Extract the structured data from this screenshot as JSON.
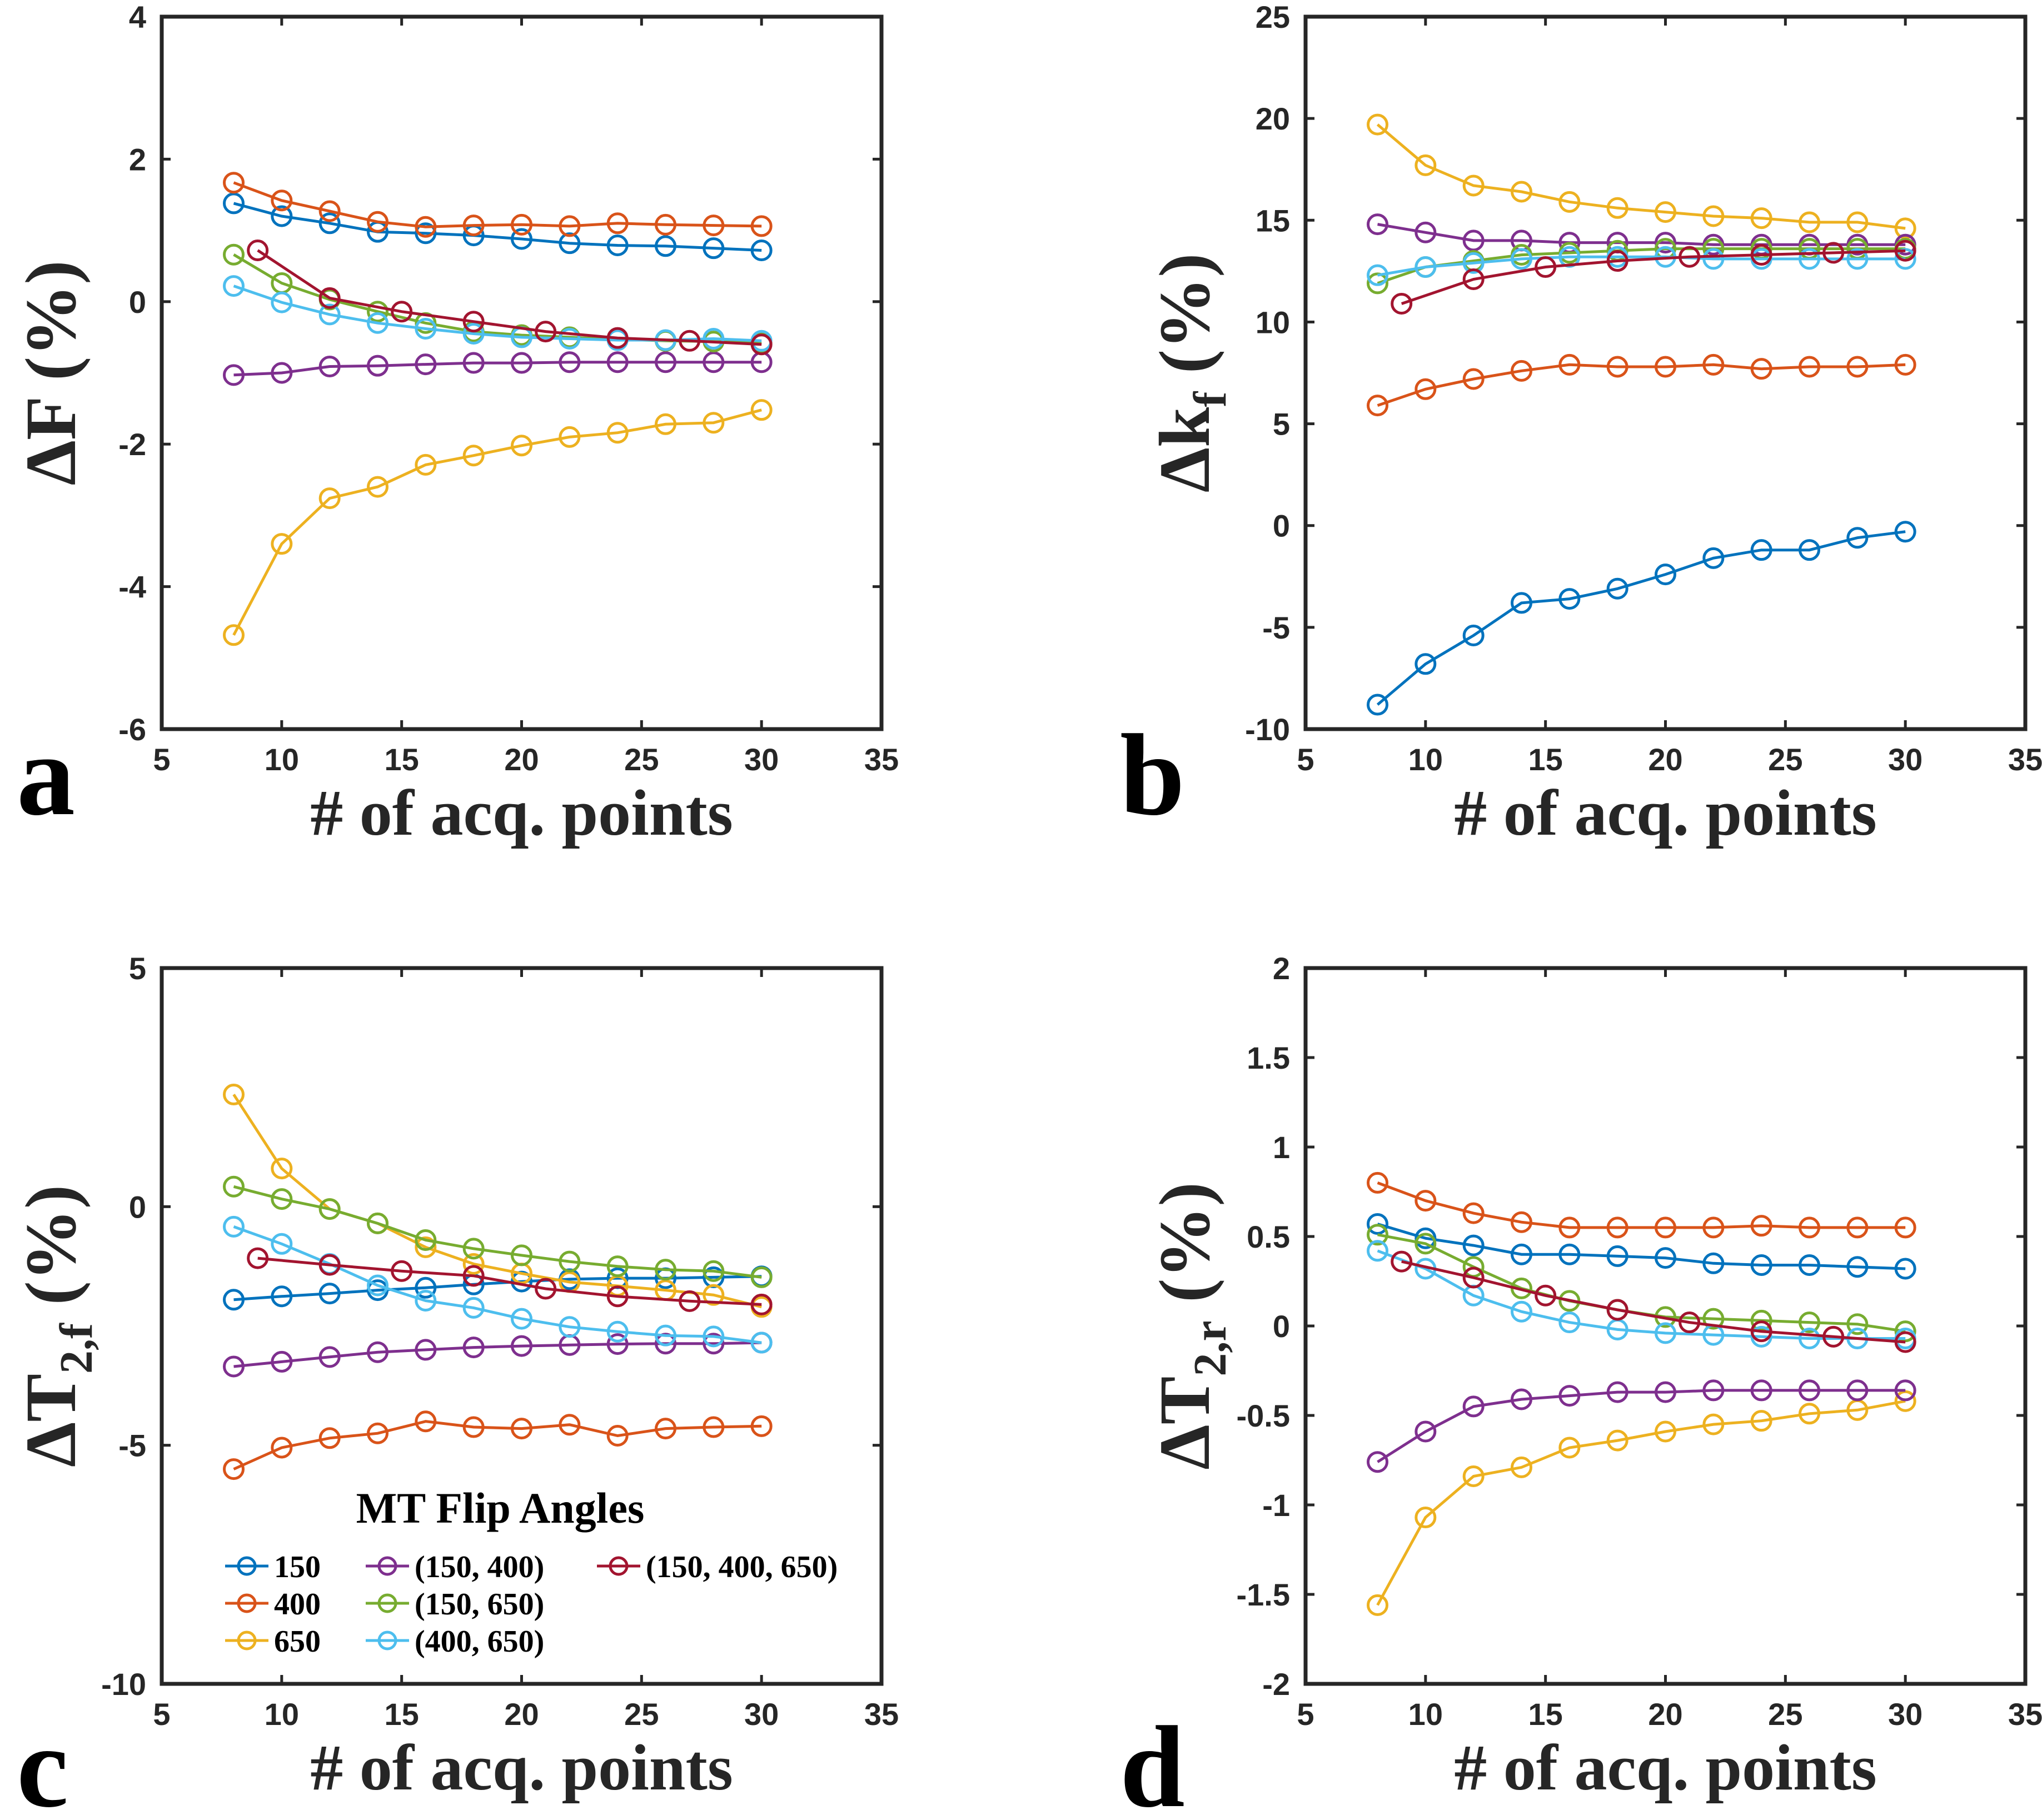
{
  "colors": {
    "150": "#0072BD",
    "400": "#D95319",
    "650": "#EDB120",
    "(150, 400)": "#7E2F8E",
    "(150, 650)": "#77AC30",
    "(400, 650)": "#4DBEEE",
    "(150, 400, 650)": "#A2142F",
    "axis": "#262626"
  },
  "legend": {
    "title": "MT Flip Angles",
    "entries": [
      "150",
      "400",
      "650",
      "(150, 400)",
      "(150, 650)",
      "(400, 650)",
      "(150, 400, 650)"
    ]
  },
  "chart_data": [
    {
      "panel": "a",
      "type": "line",
      "xlabel": "# of acq. points",
      "ylabel": "ΔF (%)",
      "xlim": [
        5,
        35
      ],
      "ylim": [
        -6,
        4
      ],
      "xticks": [
        5,
        10,
        15,
        20,
        25,
        30,
        35
      ],
      "yticks": [
        -6,
        -4,
        -2,
        0,
        2,
        4
      ],
      "series": [
        {
          "name": "150",
          "x": [
            8,
            10,
            12,
            14,
            16,
            18,
            20,
            22,
            24,
            26,
            28,
            30
          ],
          "y": [
            1.38,
            1.2,
            1.1,
            0.98,
            0.96,
            0.93,
            0.88,
            0.82,
            0.79,
            0.78,
            0.75,
            0.72
          ]
        },
        {
          "name": "400",
          "x": [
            8,
            10,
            12,
            14,
            16,
            18,
            20,
            22,
            24,
            26,
            28,
            30
          ],
          "y": [
            1.67,
            1.42,
            1.27,
            1.12,
            1.05,
            1.07,
            1.08,
            1.06,
            1.1,
            1.08,
            1.07,
            1.06
          ]
        },
        {
          "name": "650",
          "x": [
            8,
            10,
            12,
            14,
            16,
            18,
            20,
            22,
            24,
            26,
            28,
            30
          ],
          "y": [
            -4.68,
            -3.4,
            -2.76,
            -2.6,
            -2.29,
            -2.16,
            -2.02,
            -1.9,
            -1.84,
            -1.72,
            -1.7,
            -1.52
          ]
        },
        {
          "name": "(150, 400)",
          "x": [
            8,
            10,
            12,
            14,
            16,
            18,
            20,
            22,
            24,
            26,
            28,
            30
          ],
          "y": [
            -1.03,
            -1.0,
            -0.91,
            -0.9,
            -0.88,
            -0.86,
            -0.86,
            -0.85,
            -0.85,
            -0.85,
            -0.85,
            -0.85
          ]
        },
        {
          "name": "(150, 650)",
          "x": [
            8,
            10,
            12,
            14,
            16,
            18,
            20,
            22,
            24,
            26,
            28,
            30
          ],
          "y": [
            0.66,
            0.26,
            0.03,
            -0.14,
            -0.3,
            -0.42,
            -0.47,
            -0.5,
            -0.53,
            -0.55,
            -0.56,
            -0.58
          ]
        },
        {
          "name": "(400, 650)",
          "x": [
            8,
            10,
            12,
            14,
            16,
            18,
            20,
            22,
            24,
            26,
            28,
            30
          ],
          "y": [
            0.22,
            -0.01,
            -0.18,
            -0.3,
            -0.38,
            -0.45,
            -0.5,
            -0.52,
            -0.54,
            -0.54,
            -0.52,
            -0.55
          ]
        },
        {
          "name": "(150, 400, 650)",
          "x": [
            9,
            12,
            15,
            18,
            21,
            24,
            27,
            30
          ],
          "y": [
            0.72,
            0.05,
            -0.14,
            -0.28,
            -0.42,
            -0.51,
            -0.55,
            -0.6
          ]
        }
      ]
    },
    {
      "panel": "b",
      "type": "line",
      "xlabel": "# of acq. points",
      "ylabel": "Δk_f (%)",
      "xlim": [
        5,
        35
      ],
      "ylim": [
        -10,
        25
      ],
      "xticks": [
        5,
        10,
        15,
        20,
        25,
        30,
        35
      ],
      "yticks": [
        -10,
        -5,
        0,
        5,
        10,
        15,
        20,
        25
      ],
      "series": [
        {
          "name": "150",
          "x": [
            8,
            10,
            12,
            14,
            16,
            18,
            20,
            22,
            24,
            26,
            28,
            30
          ],
          "y": [
            -8.8,
            -6.8,
            -5.4,
            -3.8,
            -3.6,
            -3.1,
            -2.4,
            -1.6,
            -1.2,
            -1.2,
            -0.6,
            -0.3
          ]
        },
        {
          "name": "400",
          "x": [
            8,
            10,
            12,
            14,
            16,
            18,
            20,
            22,
            24,
            26,
            28,
            30
          ],
          "y": [
            5.9,
            6.7,
            7.2,
            7.6,
            7.9,
            7.8,
            7.8,
            7.9,
            7.7,
            7.8,
            7.8,
            7.9
          ]
        },
        {
          "name": "650",
          "x": [
            8,
            10,
            12,
            14,
            16,
            18,
            20,
            22,
            24,
            26,
            28,
            30
          ],
          "y": [
            19.7,
            17.7,
            16.7,
            16.4,
            15.9,
            15.6,
            15.4,
            15.2,
            15.1,
            14.9,
            14.9,
            14.6
          ]
        },
        {
          "name": "(150, 400)",
          "x": [
            8,
            10,
            12,
            14,
            16,
            18,
            20,
            22,
            24,
            26,
            28,
            30
          ],
          "y": [
            14.8,
            14.4,
            14.0,
            14.0,
            13.9,
            13.9,
            13.9,
            13.8,
            13.8,
            13.8,
            13.8,
            13.8
          ]
        },
        {
          "name": "(150, 650)",
          "x": [
            8,
            10,
            12,
            14,
            16,
            18,
            20,
            22,
            24,
            26,
            28,
            30
          ],
          "y": [
            11.9,
            12.7,
            13.0,
            13.3,
            13.4,
            13.5,
            13.6,
            13.6,
            13.6,
            13.6,
            13.6,
            13.6
          ]
        },
        {
          "name": "(400, 650)",
          "x": [
            8,
            10,
            12,
            14,
            16,
            18,
            20,
            22,
            24,
            26,
            28,
            30
          ],
          "y": [
            12.3,
            12.7,
            12.9,
            13.1,
            13.2,
            13.2,
            13.2,
            13.1,
            13.1,
            13.1,
            13.1,
            13.1
          ]
        },
        {
          "name": "(150, 400, 650)",
          "x": [
            9,
            12,
            15,
            18,
            21,
            24,
            27,
            30
          ],
          "y": [
            10.9,
            12.1,
            12.7,
            13.0,
            13.2,
            13.3,
            13.4,
            13.5
          ]
        }
      ]
    },
    {
      "panel": "c",
      "type": "line",
      "xlabel": "# of acq. points",
      "ylabel": "ΔT_2,f (%)",
      "xlim": [
        5,
        35
      ],
      "ylim": [
        -10,
        5
      ],
      "xticks": [
        5,
        10,
        15,
        20,
        25,
        30,
        35
      ],
      "yticks": [
        -10,
        -5,
        0,
        5
      ],
      "series": [
        {
          "name": "150",
          "x": [
            8,
            10,
            12,
            14,
            16,
            18,
            20,
            22,
            24,
            26,
            28,
            30
          ],
          "y": [
            -1.95,
            -1.88,
            -1.82,
            -1.75,
            -1.7,
            -1.63,
            -1.57,
            -1.52,
            -1.5,
            -1.5,
            -1.48,
            -1.46
          ]
        },
        {
          "name": "400",
          "x": [
            8,
            10,
            12,
            14,
            16,
            18,
            20,
            22,
            24,
            26,
            28,
            30
          ],
          "y": [
            -5.5,
            -5.05,
            -4.85,
            -4.75,
            -4.5,
            -4.62,
            -4.65,
            -4.57,
            -4.8,
            -4.65,
            -4.62,
            -4.6
          ]
        },
        {
          "name": "650",
          "x": [
            8,
            10,
            12,
            14,
            16,
            18,
            20,
            22,
            24,
            26,
            28,
            30
          ],
          "y": [
            2.35,
            0.8,
            -0.05,
            -0.35,
            -0.85,
            -1.2,
            -1.4,
            -1.58,
            -1.66,
            -1.75,
            -1.85,
            -2.1
          ]
        },
        {
          "name": "(150, 400)",
          "x": [
            8,
            10,
            12,
            14,
            16,
            18,
            20,
            22,
            24,
            26,
            28,
            30
          ],
          "y": [
            -3.35,
            -3.25,
            -3.15,
            -3.05,
            -3.0,
            -2.95,
            -2.92,
            -2.9,
            -2.88,
            -2.87,
            -2.87,
            -2.85
          ]
        },
        {
          "name": "(150, 650)",
          "x": [
            8,
            10,
            12,
            14,
            16,
            18,
            20,
            22,
            24,
            26,
            28,
            30
          ],
          "y": [
            0.42,
            0.16,
            -0.05,
            -0.35,
            -0.7,
            -0.88,
            -1.02,
            -1.15,
            -1.25,
            -1.32,
            -1.35,
            -1.48
          ]
        },
        {
          "name": "(400, 650)",
          "x": [
            8,
            10,
            12,
            14,
            16,
            18,
            20,
            22,
            24,
            26,
            28,
            30
          ],
          "y": [
            -0.42,
            -0.78,
            -1.2,
            -1.65,
            -1.97,
            -2.12,
            -2.35,
            -2.52,
            -2.62,
            -2.7,
            -2.72,
            -2.85
          ]
        },
        {
          "name": "(150, 400, 650)",
          "x": [
            9,
            12,
            15,
            18,
            21,
            24,
            27,
            30
          ],
          "y": [
            -1.08,
            -1.22,
            -1.35,
            -1.45,
            -1.72,
            -1.88,
            -1.98,
            -2.05
          ]
        }
      ]
    },
    {
      "panel": "d",
      "type": "line",
      "xlabel": "# of acq. points",
      "ylabel": "ΔT_2,r (%)",
      "xlim": [
        5,
        35
      ],
      "ylim": [
        -2,
        2
      ],
      "xticks": [
        5,
        10,
        15,
        20,
        25,
        30,
        35
      ],
      "yticks": [
        -2,
        -1.5,
        -1,
        -0.5,
        0,
        0.5,
        1,
        1.5,
        2
      ],
      "series": [
        {
          "name": "150",
          "x": [
            8,
            10,
            12,
            14,
            16,
            18,
            20,
            22,
            24,
            26,
            28,
            30
          ],
          "y": [
            0.57,
            0.49,
            0.45,
            0.4,
            0.4,
            0.39,
            0.38,
            0.35,
            0.34,
            0.34,
            0.33,
            0.32
          ]
        },
        {
          "name": "400",
          "x": [
            8,
            10,
            12,
            14,
            16,
            18,
            20,
            22,
            24,
            26,
            28,
            30
          ],
          "y": [
            0.8,
            0.7,
            0.63,
            0.58,
            0.55,
            0.55,
            0.55,
            0.55,
            0.56,
            0.55,
            0.55,
            0.55
          ]
        },
        {
          "name": "650",
          "x": [
            8,
            10,
            12,
            14,
            16,
            18,
            20,
            22,
            24,
            26,
            28,
            30
          ],
          "y": [
            -1.56,
            -1.07,
            -0.84,
            -0.79,
            -0.68,
            -0.64,
            -0.59,
            -0.55,
            -0.53,
            -0.49,
            -0.47,
            -0.42
          ]
        },
        {
          "name": "(150, 400)",
          "x": [
            8,
            10,
            12,
            14,
            16,
            18,
            20,
            22,
            24,
            26,
            28,
            30
          ],
          "y": [
            -0.76,
            -0.59,
            -0.45,
            -0.41,
            -0.39,
            -0.37,
            -0.37,
            -0.36,
            -0.36,
            -0.36,
            -0.36,
            -0.36
          ]
        },
        {
          "name": "(150, 650)",
          "x": [
            8,
            10,
            12,
            14,
            16,
            18,
            20,
            22,
            24,
            26,
            28,
            30
          ],
          "y": [
            0.51,
            0.46,
            0.33,
            0.21,
            0.14,
            0.09,
            0.05,
            0.04,
            0.03,
            0.02,
            0.01,
            -0.03
          ]
        },
        {
          "name": "(400, 650)",
          "x": [
            8,
            10,
            12,
            14,
            16,
            18,
            20,
            22,
            24,
            26,
            28,
            30
          ],
          "y": [
            0.42,
            0.32,
            0.17,
            0.08,
            0.02,
            -0.02,
            -0.04,
            -0.05,
            -0.06,
            -0.07,
            -0.07,
            -0.07
          ]
        },
        {
          "name": "(150, 400, 650)",
          "x": [
            9,
            12,
            15,
            18,
            21,
            24,
            27,
            30
          ],
          "y": [
            0.36,
            0.27,
            0.17,
            0.09,
            0.02,
            -0.03,
            -0.06,
            -0.09
          ]
        }
      ]
    }
  ]
}
